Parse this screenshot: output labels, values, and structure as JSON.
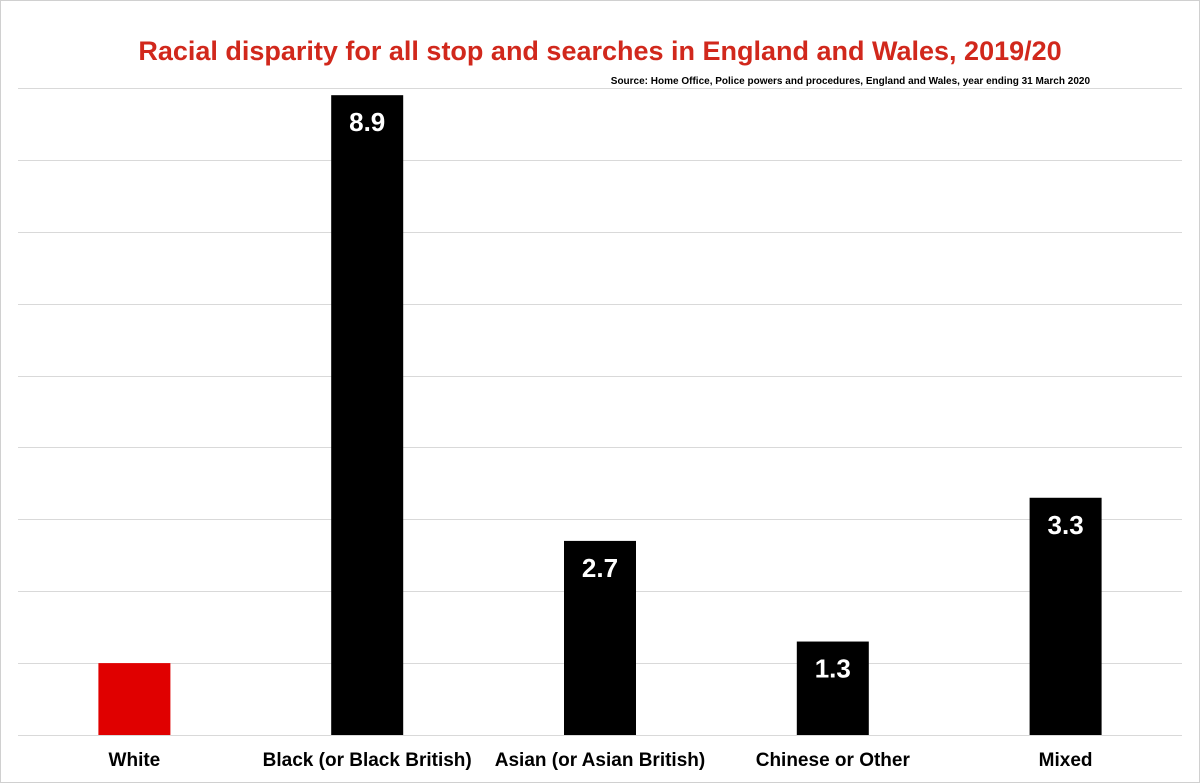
{
  "chart_data": {
    "type": "bar",
    "title": "Racial disparity for all stop and searches in England and Wales, 2019/20",
    "source": "Source: Home Office, Police powers and procedures, England and Wales, year ending 31 March 2020",
    "categories": [
      "White",
      "Black (or Black British)",
      "Asian (or Asian British)",
      "Chinese or Other",
      "Mixed"
    ],
    "values": [
      1.0,
      8.9,
      2.7,
      1.3,
      3.3
    ],
    "data_labels": [
      "",
      "8.9",
      "2.7",
      "1.3",
      "3.3"
    ],
    "ylim": [
      0,
      9
    ],
    "gridlines": true,
    "y_tick_labels_shown": false,
    "colors": {
      "title": "#d1281c",
      "highlight_bar": "#e00000",
      "bar": "#000000",
      "gridline": "#d9d9d9"
    },
    "bar_colors": [
      "#e00000",
      "#000000",
      "#000000",
      "#000000",
      "#000000"
    ]
  }
}
